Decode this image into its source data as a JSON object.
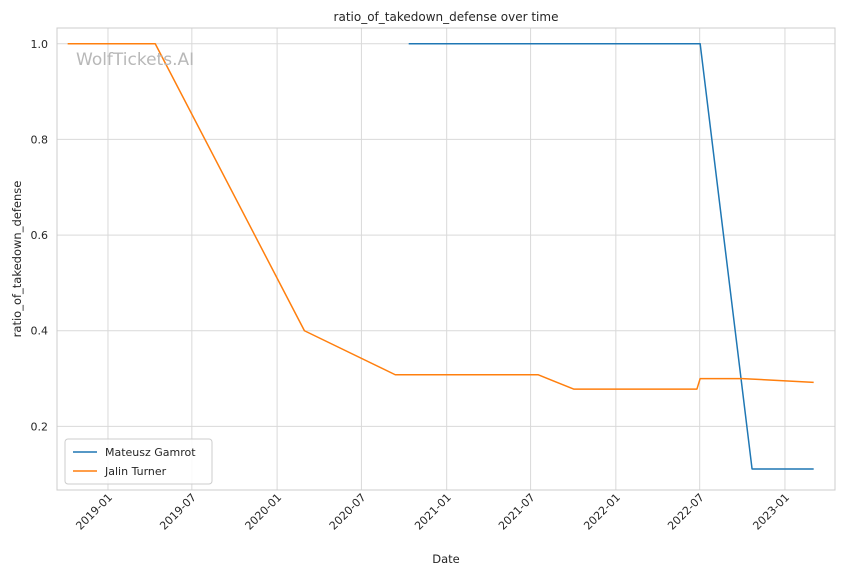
{
  "chart_data": {
    "type": "line",
    "title": "ratio_of_takedown_defense over time",
    "xlabel": "Date",
    "ylabel": "ratio_of_takedown_defense",
    "watermark": "WolfTickets.AI",
    "xlim": [
      "2018-09-13",
      "2023-04-19"
    ],
    "ylim": [
      0.067,
      1.033
    ],
    "x_ticks": [
      {
        "date": "2019-01-01",
        "label": "2019-01"
      },
      {
        "date": "2019-07-01",
        "label": "2019-07"
      },
      {
        "date": "2020-01-01",
        "label": "2020-01"
      },
      {
        "date": "2020-07-01",
        "label": "2020-07"
      },
      {
        "date": "2021-01-01",
        "label": "2021-01"
      },
      {
        "date": "2021-07-01",
        "label": "2021-07"
      },
      {
        "date": "2022-01-01",
        "label": "2022-01"
      },
      {
        "date": "2022-07-01",
        "label": "2022-07"
      },
      {
        "date": "2023-01-01",
        "label": "2023-01"
      }
    ],
    "y_ticks": [
      {
        "value": 0.2,
        "label": "0.2"
      },
      {
        "value": 0.4,
        "label": "0.4"
      },
      {
        "value": 0.6,
        "label": "0.6"
      },
      {
        "value": 0.8,
        "label": "0.8"
      },
      {
        "value": 1.0,
        "label": "1.0"
      }
    ],
    "grid": true,
    "legend_position": "lower-left",
    "series": [
      {
        "name": "Mateusz Gamrot",
        "color": "#1f77b4",
        "points": [
          {
            "x": "2020-10-11",
            "y": 1.0
          },
          {
            "x": "2022-07-02",
            "y": 1.0
          },
          {
            "x": "2022-10-22",
            "y": 0.111
          },
          {
            "x": "2023-03-04",
            "y": 0.111
          }
        ]
      },
      {
        "name": "Jalin Turner",
        "color": "#ff7f0e",
        "points": [
          {
            "x": "2018-10-06",
            "y": 1.0
          },
          {
            "x": "2019-04-13",
            "y": 1.0
          },
          {
            "x": "2020-02-29",
            "y": 0.4
          },
          {
            "x": "2020-09-12",
            "y": 0.308
          },
          {
            "x": "2021-07-17",
            "y": 0.308
          },
          {
            "x": "2021-10-02",
            "y": 0.278
          },
          {
            "x": "2022-06-25",
            "y": 0.278
          },
          {
            "x": "2022-07-02",
            "y": 0.3
          },
          {
            "x": "2022-10-01",
            "y": 0.3
          },
          {
            "x": "2023-03-04",
            "y": 0.292
          }
        ]
      }
    ]
  }
}
